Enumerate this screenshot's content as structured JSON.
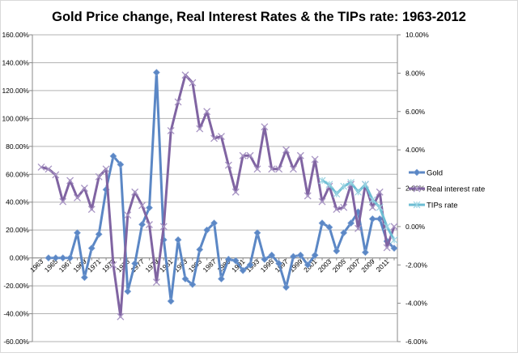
{
  "chart_data": {
    "type": "line",
    "title": "Gold Price change, Real Interest Rates & the TIPs rate: 1963-2012",
    "x": [
      1963,
      1964,
      1965,
      1966,
      1967,
      1968,
      1969,
      1970,
      1971,
      1972,
      1973,
      1974,
      1975,
      1976,
      1977,
      1978,
      1979,
      1980,
      1981,
      1982,
      1983,
      1984,
      1985,
      1986,
      1987,
      1988,
      1989,
      1990,
      1991,
      1992,
      1993,
      1994,
      1995,
      1996,
      1997,
      1998,
      1999,
      2000,
      2001,
      2002,
      2003,
      2004,
      2005,
      2006,
      2007,
      2008,
      2009,
      2010,
      2011,
      2012
    ],
    "x_tick_labels": [
      "1963",
      "1965",
      "1967",
      "1969",
      "1971",
      "1973",
      "1975",
      "1977",
      "1979",
      "1981",
      "1983",
      "1985",
      "1987",
      "1989",
      "1991",
      "1993",
      "1995",
      "1997",
      "1999",
      "2001",
      "2003",
      "2005",
      "2007",
      "2009",
      "2011"
    ],
    "y_left": {
      "range": [
        -60,
        160
      ],
      "step": 20,
      "tick_labels": [
        "-60.00%",
        "-40.00%",
        "-20.00%",
        "0.00%",
        "20.00%",
        "40.00%",
        "60.00%",
        "80.00%",
        "100.00%",
        "120.00%",
        "140.00%",
        "160.00%"
      ]
    },
    "y_right": {
      "range": [
        -6,
        10
      ],
      "step": 2,
      "tick_labels": [
        "-6.00%",
        "-4.00%",
        "-2.00%",
        "0.00%",
        "2.00%",
        "4.00%",
        "6.00%",
        "8.00%",
        "10.00%"
      ]
    },
    "grid": true,
    "legend_position": "right",
    "series": [
      {
        "name": "Gold",
        "axis": "left",
        "color": "#5b87c5",
        "marker": "diamond",
        "values": [
          null,
          0,
          0,
          0,
          0,
          18,
          -14,
          7,
          17,
          49,
          73,
          67,
          -24,
          -4,
          24,
          36,
          133,
          13,
          -31,
          13,
          -15,
          -19,
          6,
          20,
          25,
          -15,
          -1,
          -2,
          -9,
          -5,
          18,
          -1,
          2,
          -4,
          -21,
          1,
          2,
          -5,
          2,
          25,
          22,
          5,
          18,
          25,
          33,
          4,
          28,
          28,
          12,
          7
        ]
      },
      {
        "name": "Real interest rate",
        "axis": "right",
        "color": "#8064a2",
        "marker": "x",
        "values": [
          3.1,
          3.0,
          2.7,
          1.3,
          2.4,
          1.5,
          2.0,
          0.9,
          2.6,
          3.0,
          -2.0,
          -4.7,
          0.6,
          1.8,
          1.1,
          0.1,
          -2.9,
          0.0,
          5.0,
          6.5,
          7.9,
          7.5,
          5.1,
          6.0,
          4.6,
          4.7,
          3.2,
          1.8,
          3.7,
          3.7,
          3.0,
          5.2,
          3.0,
          3.0,
          4.0,
          3.0,
          3.7,
          1.6,
          3.5,
          1.3,
          2.1,
          0.9,
          1.0,
          2.2,
          -0.1,
          2.2,
          1.0,
          1.8,
          -1.1,
          0.0
        ]
      },
      {
        "name": "TIPs rate",
        "axis": "right",
        "color": "#6cbdd3",
        "marker": "star",
        "values": [
          null,
          null,
          null,
          null,
          null,
          null,
          null,
          null,
          null,
          null,
          null,
          null,
          null,
          null,
          null,
          null,
          null,
          null,
          null,
          null,
          null,
          null,
          null,
          null,
          null,
          null,
          null,
          null,
          null,
          null,
          null,
          null,
          null,
          null,
          null,
          null,
          null,
          null,
          null,
          2.4,
          2.2,
          1.7,
          2.1,
          2.3,
          1.8,
          2.2,
          1.4,
          1.0,
          0.0,
          -0.7
        ]
      }
    ]
  }
}
